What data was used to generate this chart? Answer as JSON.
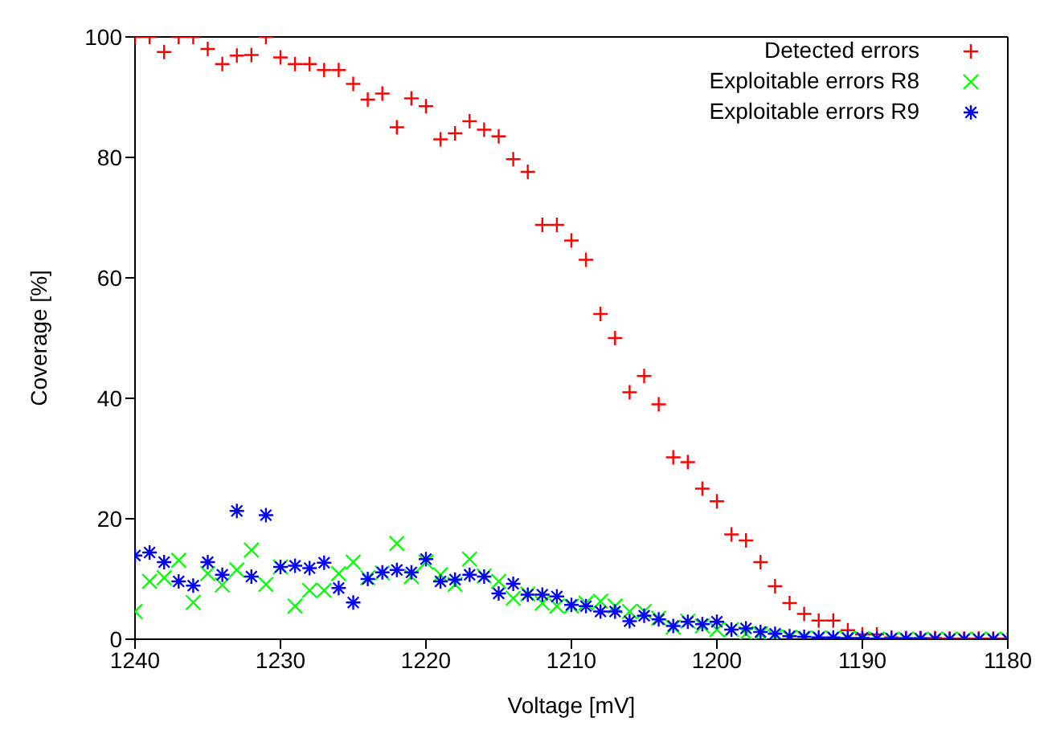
{
  "chart_data": {
    "type": "scatter",
    "xlabel": "Voltage [mV]",
    "ylabel": "Coverage [%]",
    "x": [
      1240,
      1239,
      1238,
      1237,
      1236,
      1235,
      1234,
      1233,
      1232,
      1231,
      1230,
      1229,
      1228,
      1227,
      1226,
      1225,
      1224,
      1223,
      1222,
      1221,
      1220,
      1219,
      1218,
      1217,
      1216,
      1215,
      1214,
      1213,
      1212,
      1211,
      1210,
      1209,
      1208,
      1207,
      1206,
      1205,
      1204,
      1203,
      1202,
      1201,
      1200,
      1199,
      1198,
      1197,
      1196,
      1195,
      1194,
      1193,
      1192,
      1191,
      1190,
      1189,
      1188,
      1187,
      1186,
      1185,
      1184,
      1183,
      1182,
      1181,
      1180
    ],
    "series": [
      {
        "name": "Detected errors",
        "color": "#ff0000",
        "marker": "cross",
        "values": [
          100,
          100,
          97.5,
          100,
          100,
          98,
          95.5,
          96.9,
          97,
          100,
          96.6,
          95.5,
          95.5,
          94.5,
          94.5,
          92.2,
          89.6,
          90.6,
          85,
          89.8,
          88.5,
          83,
          84,
          86,
          84.6,
          83.5,
          79.7,
          77.6,
          68.8,
          68.8,
          66.2,
          63,
          54,
          50,
          41,
          43.7,
          39,
          30.2,
          29.4,
          25,
          22.9,
          17.4,
          16.4,
          12.8,
          8.8,
          6,
          4.2,
          3.1,
          3.1,
          1.5,
          0.8,
          0.8,
          0.3,
          0.2,
          0.2,
          0.2,
          0.1,
          0.1,
          0.1,
          0.1,
          0.1
        ]
      },
      {
        "name": "Exploitable errors R8",
        "color": "#00ff00",
        "marker": "x",
        "values": [
          4.6,
          9.6,
          10.2,
          13.1,
          6.1,
          10.9,
          9,
          11.5,
          14.8,
          9.1,
          12,
          5.5,
          8.1,
          8.1,
          10.9,
          12.8,
          10.2,
          11,
          15.9,
          10.4,
          12.8,
          10.7,
          9.1,
          13.3,
          10.5,
          9.6,
          6.8,
          7.5,
          6,
          5.5,
          5.5,
          6,
          6.3,
          5.5,
          4.6,
          4.6,
          3.5,
          2,
          3,
          2.2,
          1.6,
          1.6,
          0.9,
          0.9,
          0.4,
          0.3,
          0.2,
          0.2,
          0.2,
          0.1,
          0.1,
          0,
          0,
          0,
          0,
          0,
          0,
          0,
          0,
          0,
          0
        ]
      },
      {
        "name": "Exploitable errors R9",
        "color": "#0000ff",
        "values": [
          13.9,
          14.4,
          12.8,
          9.6,
          8.9,
          12.8,
          10.7,
          21.3,
          10.4,
          20.6,
          12,
          12.2,
          11.8,
          12.7,
          8.5,
          6.1,
          10,
          11.1,
          11.5,
          11.1,
          13.3,
          9.6,
          9.9,
          10.7,
          10.4,
          7.6,
          9.2,
          7.4,
          7.4,
          7.1,
          5.7,
          5.5,
          4.6,
          4.6,
          3,
          3.9,
          3.3,
          2.2,
          2.9,
          2.5,
          2.9,
          1.6,
          1.8,
          1.2,
          0.9,
          0.5,
          0.4,
          0.3,
          0.3,
          0.2,
          0.2,
          0.1,
          0.1,
          0.1,
          0.1,
          0,
          0,
          0,
          0,
          0,
          0
        ]
      }
    ],
    "xlim": [
      1240,
      1180
    ],
    "xticks": [
      1240,
      1230,
      1220,
      1210,
      1200,
      1190,
      1180
    ],
    "ylim": [
      0,
      100
    ],
    "yticks": [
      0,
      20,
      40,
      60,
      80,
      100
    ],
    "legend": "top right"
  }
}
